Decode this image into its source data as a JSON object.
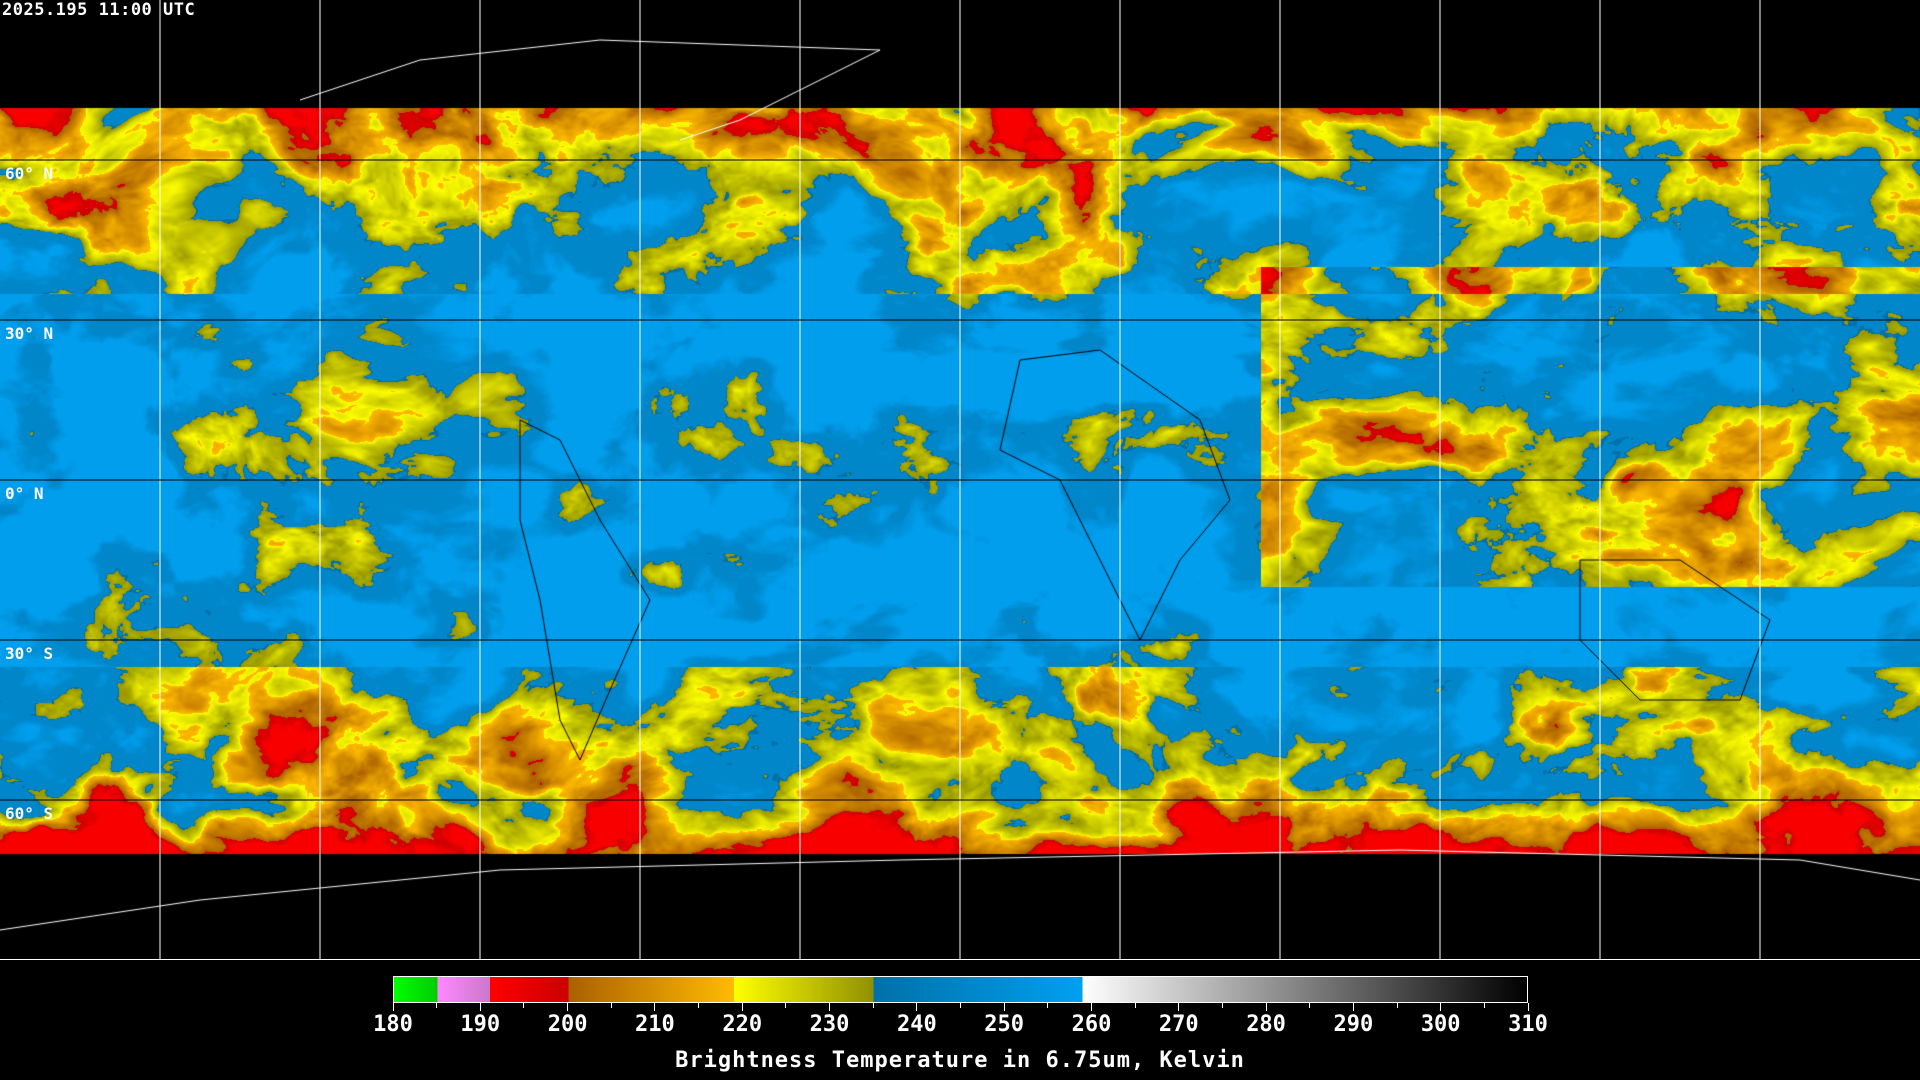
{
  "header": {
    "timestamp": "2025.195 11:00 UTC"
  },
  "map": {
    "projection": "equirectangular",
    "lat_labels": [
      "60° N",
      "30° N",
      "0° N",
      "30° S",
      "60° S"
    ],
    "grid_spacing_deg": 30,
    "colors": {
      "background": "#000000",
      "coastline": "#ffffff",
      "gridline": "#ffffff"
    }
  },
  "colorbar": {
    "title": "Brightness Temperature in 6.75um, Kelvin",
    "min": 180,
    "max": 310,
    "tick_labels": [
      "180",
      "190",
      "200",
      "210",
      "220",
      "230",
      "240",
      "250",
      "260",
      "270",
      "280",
      "290",
      "300",
      "310"
    ],
    "segments": [
      {
        "from": 180,
        "to": 185,
        "colors": [
          "#00ff00",
          "#00cc00"
        ]
      },
      {
        "from": 185,
        "to": 191,
        "colors": [
          "#ff88ff",
          "#cc77cc"
        ]
      },
      {
        "from": 191,
        "to": 200,
        "colors": [
          "#ff0000",
          "#cc0000"
        ]
      },
      {
        "from": 200,
        "to": 219,
        "colors": [
          "#aa6000",
          "#ffbb00"
        ]
      },
      {
        "from": 219,
        "to": 235,
        "colors": [
          "#ffff00",
          "#909000"
        ]
      },
      {
        "from": 235,
        "to": 259,
        "colors": [
          "#0070a8",
          "#00a0f0"
        ]
      },
      {
        "from": 259,
        "to": 310,
        "colors": [
          "#ffffff",
          "#000000"
        ]
      }
    ]
  }
}
